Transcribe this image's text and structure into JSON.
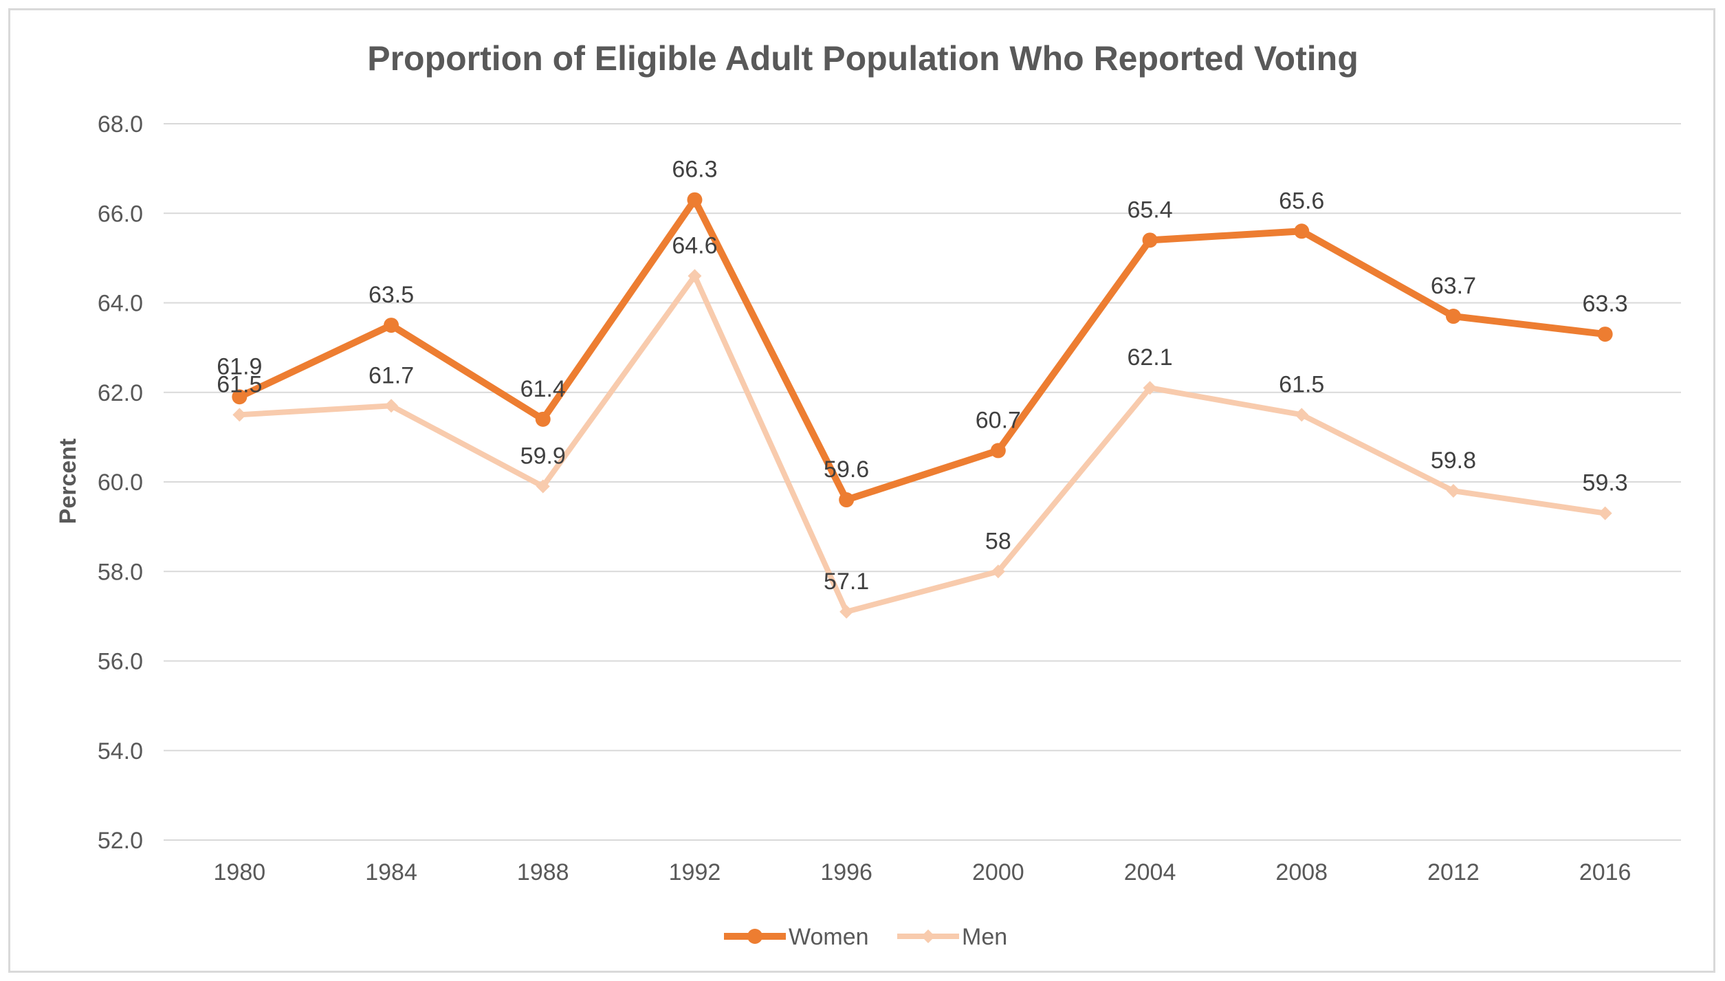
{
  "chart_data": {
    "type": "line",
    "title": "Proportion of Eligible Adult Population Who Reported Voting",
    "xlabel": "",
    "ylabel": "Percent",
    "categories": [
      "1980",
      "1984",
      "1988",
      "1992",
      "1996",
      "2000",
      "2004",
      "2008",
      "2012",
      "2016"
    ],
    "ylim": [
      52.0,
      68.0
    ],
    "yticks": [
      "52.0",
      "54.0",
      "56.0",
      "58.0",
      "60.0",
      "62.0",
      "64.0",
      "66.0",
      "68.0"
    ],
    "grid": true,
    "legend_position": "bottom",
    "series": [
      {
        "name": "Women",
        "color": "#ED7D31",
        "marker": "circle",
        "values": [
          61.9,
          63.5,
          61.4,
          66.3,
          59.6,
          60.7,
          65.4,
          65.6,
          63.7,
          63.3
        ],
        "labels": [
          "61.9",
          "63.5",
          "61.4",
          "66.3",
          "59.6",
          "60.7",
          "65.4",
          "65.6",
          "63.7",
          "63.3"
        ]
      },
      {
        "name": "Men",
        "color": "#F8CBAD",
        "marker": "diamond",
        "values": [
          61.5,
          61.7,
          59.9,
          64.6,
          57.1,
          58.0,
          62.1,
          61.5,
          59.8,
          59.3
        ],
        "labels": [
          "61.5",
          "61.7",
          "59.9",
          "64.6",
          "57.1",
          "58",
          "62.1",
          "61.5",
          "59.8",
          "59.3"
        ]
      }
    ]
  },
  "colors": {
    "grid": "#D9D9D9",
    "text": "#595959"
  }
}
